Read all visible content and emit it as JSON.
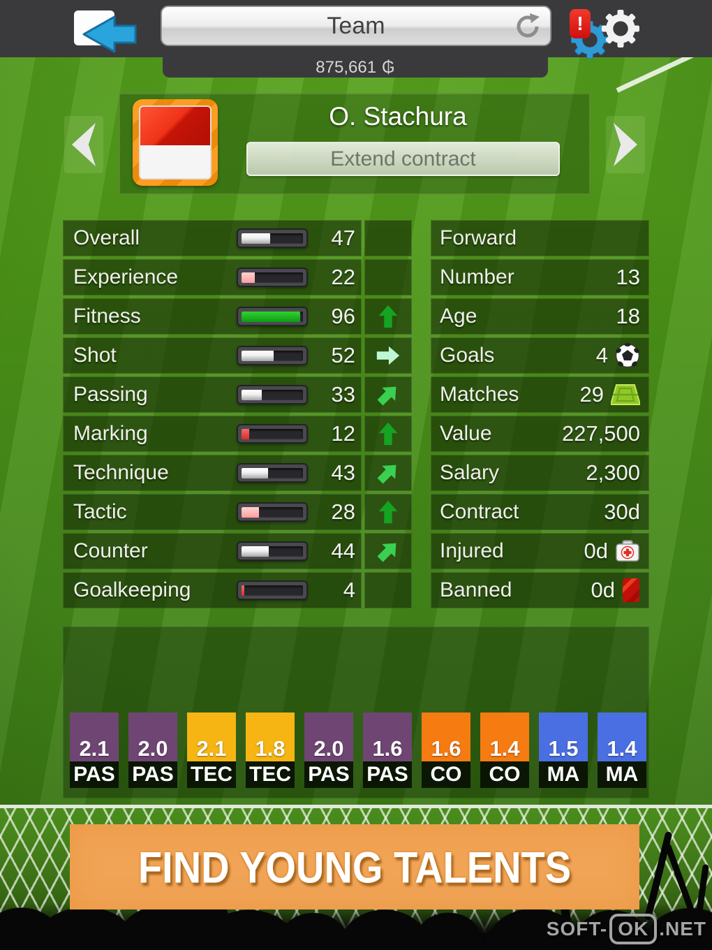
{
  "header": {
    "title": "Team",
    "money": "875,661",
    "currency": "₲",
    "alert": "!"
  },
  "player": {
    "name": "O. Stachura",
    "extend_label": "Extend contract"
  },
  "stats": [
    {
      "label": "Overall",
      "value": "47",
      "fill": "white",
      "trend": null
    },
    {
      "label": "Experience",
      "value": "22",
      "fill": "pink",
      "trend": null
    },
    {
      "label": "Fitness",
      "value": "96",
      "fill": "green",
      "trend": "up"
    },
    {
      "label": "Shot",
      "value": "52",
      "fill": "white",
      "trend": "right"
    },
    {
      "label": "Passing",
      "value": "33",
      "fill": "white",
      "trend": "up-right"
    },
    {
      "label": "Marking",
      "value": "12",
      "fill": "red",
      "trend": "up"
    },
    {
      "label": "Technique",
      "value": "43",
      "fill": "white",
      "trend": "up-right"
    },
    {
      "label": "Tactic",
      "value": "28",
      "fill": "pink",
      "trend": "up"
    },
    {
      "label": "Counter",
      "value": "44",
      "fill": "white",
      "trend": "up-right"
    },
    {
      "label": "Goalkeeping",
      "value": "4",
      "fill": "red",
      "trend": null
    }
  ],
  "info": [
    {
      "label": "Forward",
      "value": "",
      "icon": null
    },
    {
      "label": "Number",
      "value": "13",
      "icon": null
    },
    {
      "label": "Age",
      "value": "18",
      "icon": null
    },
    {
      "label": "Goals",
      "value": "4",
      "icon": "soccer-ball"
    },
    {
      "label": "Matches",
      "value": "29",
      "icon": "pitch"
    },
    {
      "label": "Value",
      "value": "227,500",
      "icon": null
    },
    {
      "label": "Salary",
      "value": "2,300",
      "icon": null
    },
    {
      "label": "Contract",
      "value": "30d",
      "icon": null
    },
    {
      "label": "Injured",
      "value": "0d",
      "icon": "medkit"
    },
    {
      "label": "Banned",
      "value": "0d",
      "icon": "red-card"
    }
  ],
  "ratings": [
    {
      "value": "2.1",
      "label": "PAS",
      "color": "#6f4673"
    },
    {
      "value": "2.0",
      "label": "PAS",
      "color": "#6f4673"
    },
    {
      "value": "2.1",
      "label": "TEC",
      "color": "#f6b513"
    },
    {
      "value": "1.8",
      "label": "TEC",
      "color": "#f6b513"
    },
    {
      "value": "2.0",
      "label": "PAS",
      "color": "#6f4673"
    },
    {
      "value": "1.6",
      "label": "PAS",
      "color": "#6f4673"
    },
    {
      "value": "1.6",
      "label": "CO",
      "color": "#f67c12"
    },
    {
      "value": "1.4",
      "label": "CO",
      "color": "#f67c12"
    },
    {
      "value": "1.5",
      "label": "MA",
      "color": "#4a6fe2"
    },
    {
      "value": "1.4",
      "label": "MA",
      "color": "#4a6fe2"
    }
  ],
  "banner": {
    "label": "FIND YOUNG TALENTS"
  },
  "watermark": {
    "pre": "SOFT-",
    "boxed": "OK",
    "post": ".NET"
  }
}
